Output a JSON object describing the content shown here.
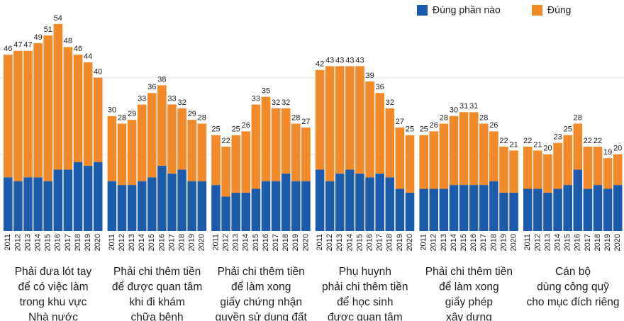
{
  "chart_data": {
    "type": "grouped-stacked-bar",
    "series": [
      {
        "name": "Đúng phần nào",
        "color": "#1c5bab"
      },
      {
        "name": "Đúng",
        "color": "#f28a2a"
      }
    ],
    "ylim": [
      0,
      60
    ],
    "grid_values": [
      20,
      40
    ],
    "groups": [
      {
        "label": [
          "Phải đưa lót tay",
          "để có việc làm",
          "trong khu vực",
          "Nhà nước"
        ],
        "categories": [
          "2011",
          "2012",
          "2013",
          "2014",
          "2015",
          "2016",
          "2017",
          "2018",
          "2019",
          "2020"
        ],
        "values": [
          [
            14,
            13,
            14,
            14,
            13,
            16,
            16,
            18,
            17,
            18
          ],
          [
            32,
            34,
            33,
            35,
            38,
            38,
            32,
            28,
            27,
            22
          ]
        ],
        "total_labels": [
          46,
          47,
          47,
          49,
          51,
          54,
          48,
          46,
          44,
          40
        ]
      },
      {
        "label": [
          "Phải chi thêm tiền",
          "để được quan tâm",
          "khi đi khám",
          "chữa bệnh"
        ],
        "categories": [
          "2011",
          "2012",
          "2013",
          "2014",
          "2015",
          "2016",
          "2017",
          "2018",
          "2019",
          "2020"
        ],
        "values": [
          [
            13,
            12,
            12,
            13,
            14,
            17,
            15,
            16,
            13,
            13
          ],
          [
            17,
            16,
            17,
            20,
            22,
            21,
            18,
            16,
            16,
            15
          ]
        ],
        "total_labels": [
          30,
          28,
          29,
          33,
          36,
          38,
          33,
          32,
          29,
          28
        ]
      },
      {
        "label": [
          "Phải chi thêm tiền",
          "để làm xong",
          "giấy chứng nhận",
          "quyền sử dụng đất"
        ],
        "categories": [
          "2011",
          "2012",
          "2013",
          "2014",
          "2015",
          "2016",
          "2017",
          "2018",
          "2019",
          "2020"
        ],
        "values": [
          [
            12,
            9,
            10,
            10,
            11,
            13,
            13,
            15,
            13,
            13
          ],
          [
            13,
            13,
            15,
            16,
            22,
            22,
            19,
            17,
            15,
            14
          ]
        ],
        "total_labels": [
          25,
          22,
          25,
          26,
          33,
          35,
          32,
          32,
          28,
          27
        ]
      },
      {
        "label": [
          "Phụ huynh",
          "phải chi thêm tiền",
          "để học sinh",
          "được quan tâm"
        ],
        "categories": [
          "2011",
          "2012",
          "2013",
          "2014",
          "2015",
          "2016",
          "2017",
          "2018",
          "2019",
          "2020"
        ],
        "values": [
          [
            16,
            13,
            15,
            16,
            15,
            14,
            15,
            14,
            11,
            10
          ],
          [
            26,
            30,
            28,
            27,
            28,
            25,
            21,
            18,
            16,
            15
          ]
        ],
        "total_labels": [
          42,
          43,
          43,
          43,
          43,
          39,
          36,
          32,
          27,
          25
        ]
      },
      {
        "label": [
          "Phải chi thêm tiền",
          "để làm xong",
          "giấy phép",
          "xây dựng"
        ],
        "categories": [
          "2011",
          "2012",
          "2013",
          "2014",
          "2015",
          "2016",
          "2017",
          "2018",
          "2019",
          "2020"
        ],
        "values": [
          [
            11,
            11,
            11,
            12,
            12,
            12,
            12,
            13,
            10,
            10
          ],
          [
            14,
            15,
            17,
            18,
            19,
            19,
            16,
            13,
            12,
            11
          ]
        ],
        "total_labels": [
          25,
          26,
          28,
          30,
          31,
          31,
          28,
          26,
          22,
          21
        ]
      },
      {
        "label": [
          "Cán bộ",
          "dùng công quỹ",
          "cho mục đích riêng"
        ],
        "categories": [
          "2011",
          "2012",
          "2013",
          "2014",
          "2015",
          "2016",
          "2017",
          "2018",
          "2019",
          "2020"
        ],
        "values": [
          [
            11,
            11,
            10,
            11,
            12,
            16,
            11,
            12,
            11,
            12
          ],
          [
            11,
            10,
            10,
            12,
            13,
            12,
            11,
            10,
            8,
            8
          ]
        ],
        "total_labels": [
          22,
          21,
          20,
          23,
          25,
          28,
          22,
          22,
          19,
          20
        ]
      }
    ]
  }
}
